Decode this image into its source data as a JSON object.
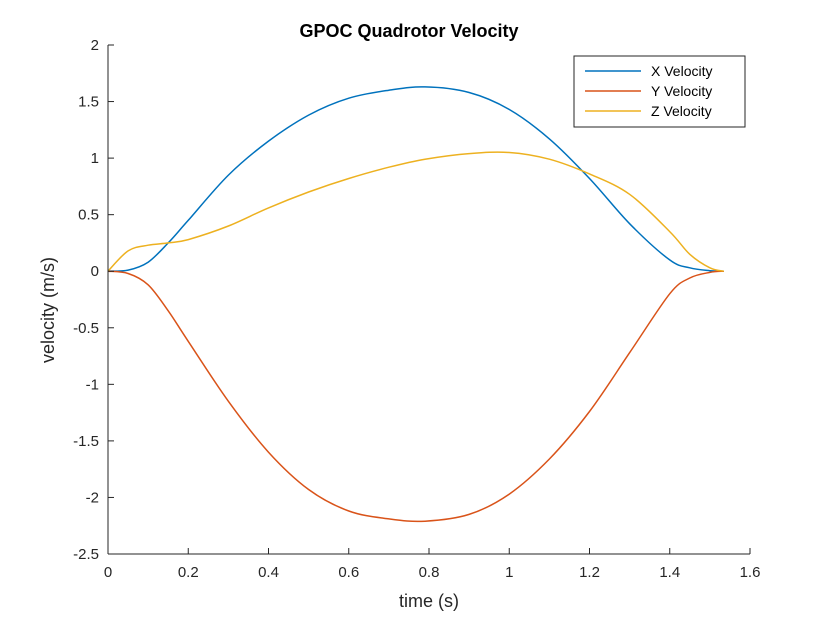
{
  "chart_data": {
    "type": "line",
    "title": "GPOC Quadrotor Velocity",
    "xlabel": "time (s)",
    "ylabel": "velocity (m/s)",
    "xlim": [
      0,
      1.6
    ],
    "ylim": [
      -2.5,
      2
    ],
    "x_ticks": [
      0,
      0.2,
      0.4,
      0.6,
      0.8,
      1,
      1.2,
      1.4,
      1.6
    ],
    "x_tick_labels": [
      "0",
      "0.2",
      "0.4",
      "0.6",
      "0.8",
      "1",
      "1.2",
      "1.4",
      "1.6"
    ],
    "y_ticks": [
      -2.5,
      -2,
      -1.5,
      -1,
      -0.5,
      0,
      0.5,
      1,
      1.5,
      2
    ],
    "y_tick_labels": [
      "-2.5",
      "-2",
      "-1.5",
      "-1",
      "-0.5",
      "0",
      "0.5",
      "1",
      "1.5",
      "2"
    ],
    "grid": false,
    "legend_position": "top-right",
    "x": [
      0,
      0.05,
      0.1,
      0.15,
      0.2,
      0.3,
      0.4,
      0.5,
      0.6,
      0.7,
      0.79,
      0.9,
      1.0,
      1.1,
      1.2,
      1.3,
      1.4,
      1.45,
      1.5,
      1.535
    ],
    "series": [
      {
        "name": "X Velocity",
        "color": "#0072bd",
        "values": [
          0,
          0.01,
          0.08,
          0.25,
          0.45,
          0.85,
          1.15,
          1.38,
          1.53,
          1.6,
          1.63,
          1.58,
          1.43,
          1.17,
          0.82,
          0.42,
          0.1,
          0.03,
          0.005,
          0
        ]
      },
      {
        "name": "Y Velocity",
        "color": "#d95319",
        "values": [
          0,
          -0.02,
          -0.12,
          -0.35,
          -0.62,
          -1.15,
          -1.6,
          -1.93,
          -2.12,
          -2.19,
          -2.21,
          -2.15,
          -1.97,
          -1.66,
          -1.24,
          -0.72,
          -0.2,
          -0.06,
          -0.01,
          0
        ]
      },
      {
        "name": "Z Velocity",
        "color": "#edb120",
        "values": [
          0,
          0.18,
          0.23,
          0.25,
          0.28,
          0.4,
          0.56,
          0.7,
          0.82,
          0.92,
          0.99,
          1.04,
          1.05,
          0.99,
          0.86,
          0.68,
          0.35,
          0.15,
          0.03,
          0
        ]
      }
    ]
  }
}
